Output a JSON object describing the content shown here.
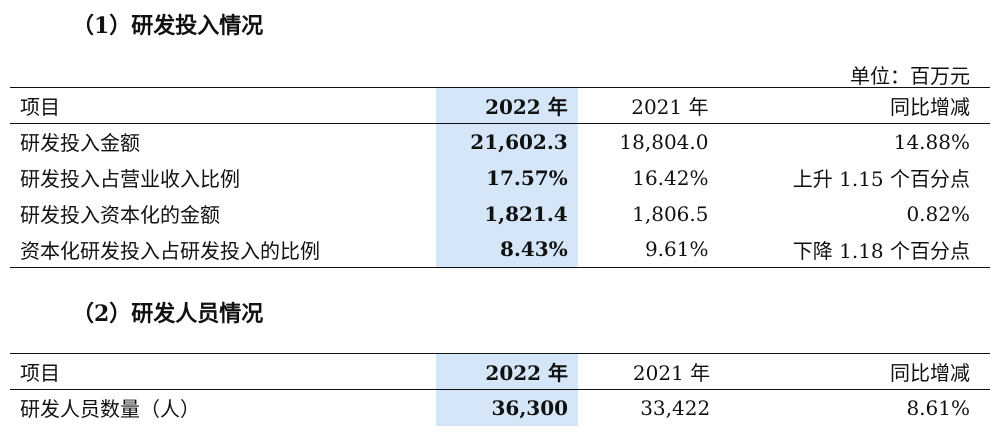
{
  "section1": {
    "title": "（1）研发投入情况",
    "unit": "单位：百万元",
    "headers": [
      "项目",
      "2022 年",
      "2021 年",
      "同比增减"
    ],
    "rows": [
      {
        "item": "研发投入金额",
        "cur": "21,602.3",
        "prev": "18,804.0",
        "chg": "14.88%"
      },
      {
        "item": "研发投入占营业收入比例",
        "cur": "17.57%",
        "prev": "16.42%",
        "chg": "上升 1.15 个百分点"
      },
      {
        "item": "研发投入资本化的金额",
        "cur": "1,821.4",
        "prev": "1,806.5",
        "chg": "0.82%"
      },
      {
        "item": "资本化研发投入占研发投入的比例",
        "cur": "8.43%",
        "prev": "9.61%",
        "chg": "下降 1.18 个百分点"
      }
    ]
  },
  "section2": {
    "title": "（2）研发人员情况",
    "headers": [
      "项目",
      "2022 年",
      "2021 年",
      "同比增减"
    ],
    "rows": [
      {
        "item": "研发人员数量（人）",
        "cur": "36,300",
        "prev": "33,422",
        "chg": "8.61%"
      }
    ]
  },
  "colors": {
    "highlight": "#d4e6f8",
    "rule": "#111111"
  }
}
